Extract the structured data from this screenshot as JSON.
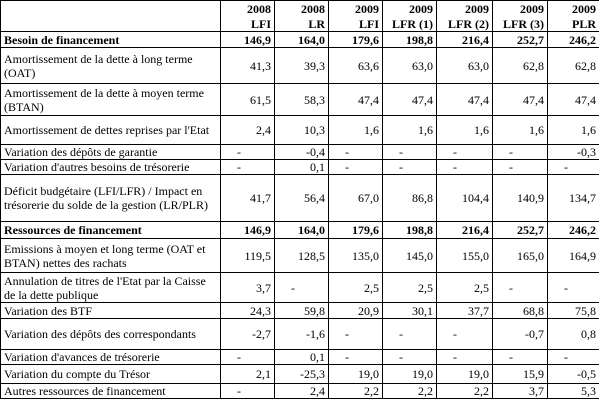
{
  "table": {
    "header": [
      [
        "2008",
        "LFI"
      ],
      [
        "2008",
        "LR"
      ],
      [
        "2009",
        "LFI"
      ],
      [
        "2009",
        "LFR (1)"
      ],
      [
        "2009",
        "LFR (2)"
      ],
      [
        "2009",
        "LFR (3)"
      ],
      [
        "2009",
        "PLR"
      ]
    ],
    "rows": [
      {
        "label": "Besoin de financement",
        "values": [
          "146,9",
          "164,0",
          "179,6",
          "198,8",
          "216,4",
          "252,7",
          "246,2"
        ]
      },
      {
        "label": "Amortissement de la dette à long terme (OAT)",
        "values": [
          "41,3",
          "39,3",
          "63,6",
          "63,0",
          "63,0",
          "62,8",
          "62,8"
        ]
      },
      {
        "label": "Amortissement de la dette à moyen terme (BTAN)",
        "values": [
          "61,5",
          "58,3",
          "47,4",
          "47,4",
          "47,4",
          "47,4",
          "47,4"
        ]
      },
      {
        "label": "Amortissement de dettes reprises par l'Etat",
        "values": [
          "2,4",
          "10,3",
          "1,6",
          "1,6",
          "1,6",
          "1,6",
          "1,6"
        ]
      },
      {
        "label": "Variation des dépôts de garantie",
        "values": [
          "-",
          "-0,4",
          "-",
          "-",
          "-",
          "-",
          "-0,3"
        ]
      },
      {
        "label": "Variation d'autres besoins de trésorerie",
        "values": [
          "-",
          "0,1",
          "-",
          "-",
          "-",
          "-",
          "-"
        ]
      },
      {
        "label": "Déficit budgétaire (LFI/LFR) / Impact en trésorerie du solde de la gestion (LR/PLR)",
        "values": [
          "41,7",
          "56,4",
          "67,0",
          "86,8",
          "104,4",
          "140,9",
          "134,7"
        ]
      },
      {
        "label": "Ressources de financement",
        "values": [
          "146,9",
          "164,0",
          "179,6",
          "198,8",
          "216,4",
          "252,7",
          "246,2"
        ]
      },
      {
        "label": "Emissions à moyen et long terme (OAT et BTAN) nettes des rachats",
        "values": [
          "119,5",
          "128,5",
          "135,0",
          "145,0",
          "155,0",
          "165,0",
          "164,9"
        ]
      },
      {
        "label": "Annulation de titres de l'Etat par la Caisse de la dette publique",
        "values": [
          "3,7",
          "-",
          "2,5",
          "2,5",
          "2,5",
          "-",
          "-"
        ]
      },
      {
        "label": "Variation des BTF",
        "values": [
          "24,3",
          "59,8",
          "20,9",
          "30,1",
          "37,7",
          "68,8",
          "75,8"
        ]
      },
      {
        "label": "Variation des dépôts des correspondants",
        "values": [
          "-2,7",
          "-1,6",
          "-",
          "-",
          "-",
          "-0,7",
          "0,8"
        ]
      },
      {
        "label": "Variation d'avances de trésorerie",
        "values": [
          "-",
          "0,1",
          "-",
          "-",
          "-",
          "-",
          "-"
        ]
      },
      {
        "label": "Variation du compte du Trésor",
        "values": [
          "2,1",
          "-25,3",
          "19,0",
          "19,0",
          "19,0",
          "15,9",
          "-0,5"
        ]
      },
      {
        "label": "Autres ressources de financement",
        "values": [
          "-",
          "2,4",
          "2,2",
          "2,2",
          "2,2",
          "3,7",
          "5,3"
        ]
      }
    ]
  }
}
